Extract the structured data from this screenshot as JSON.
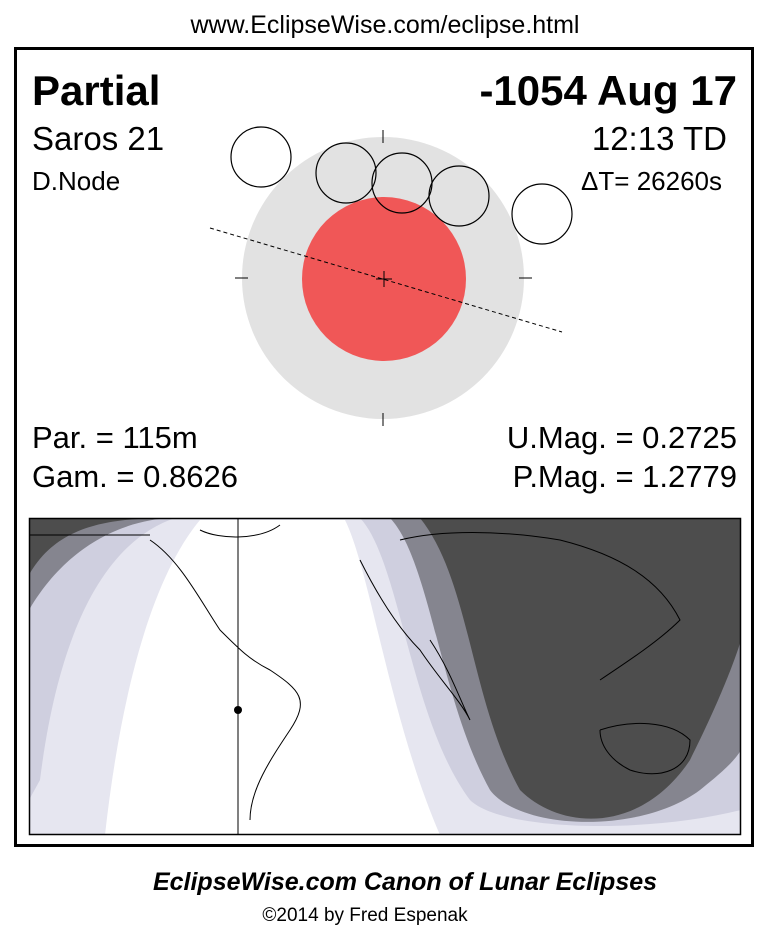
{
  "header": {
    "url": "www.EclipseWise.com/eclipse.html"
  },
  "eclipse": {
    "type": "Partial",
    "date": "-1054 Aug 17",
    "saros": "Saros  21",
    "time": "12:13 TD",
    "node": "D.Node",
    "delta_t": "ΔT=  26260s",
    "duration": "Par. = 115m",
    "gamma": "Gam. = 0.8626",
    "umbral_mag": "U.Mag. = 0.2725",
    "penumbral_mag": "P.Mag. = 1.2779"
  },
  "footer": {
    "title": "EclipseWise.com Canon of Lunar Eclipses",
    "copyright": "©2014 by Fred Espenak"
  }
}
